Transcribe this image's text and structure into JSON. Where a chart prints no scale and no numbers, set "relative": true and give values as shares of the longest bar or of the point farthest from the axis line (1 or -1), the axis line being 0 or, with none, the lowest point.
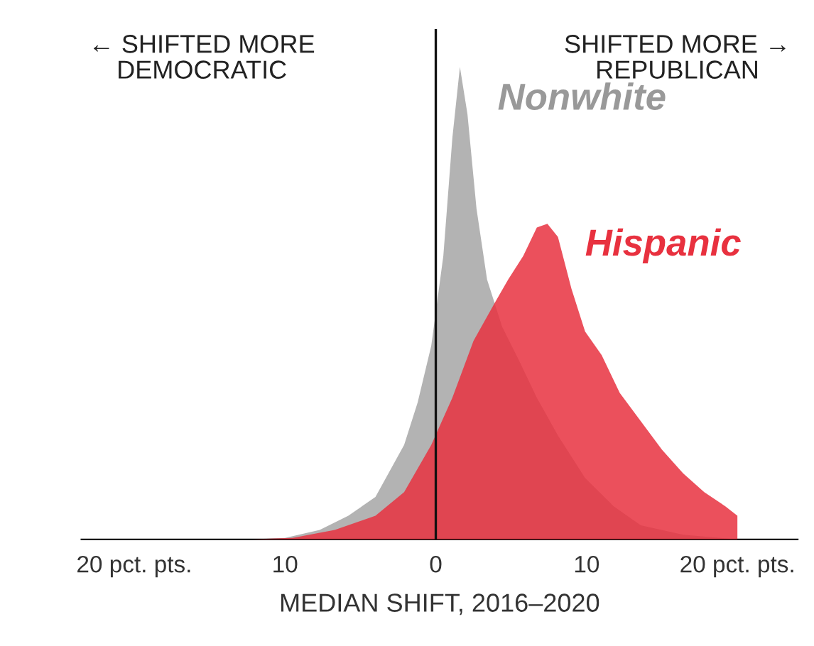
{
  "chart_data": {
    "type": "area",
    "relative": true,
    "xlabel": "MEDIAN SHIFT, 2016–2020",
    "annotations": [
      "← SHIFTED MORE\nDEMOCRATIC",
      "SHIFTED MORE →\nREPUBLICAN"
    ],
    "xlim": [
      -23.5,
      24
    ],
    "xticks": [
      {
        "value": -20,
        "label": "20 pct. pts."
      },
      {
        "value": -10,
        "label": "10"
      },
      0,
      10,
      {
        "value": 20,
        "label": "20 pct. pts."
      }
    ],
    "ref_lines": [
      {
        "axis": "x",
        "value": 0,
        "color": "#111111"
      }
    ],
    "grid": false,
    "legend": false,
    "series": [
      {
        "name": "Hispanic",
        "color": "#e8313f",
        "x": [
          -12.3,
          -9.5,
          -6.7,
          -4,
          -2.1,
          -0.3,
          1.1,
          2.5,
          3.9,
          4.8,
          5.8,
          6.7,
          7.4,
          8.1,
          9,
          9.9,
          11,
          12.2,
          13.6,
          15,
          16.4,
          17.8,
          19.2,
          20
        ],
        "values": [
          0,
          0.003,
          0.02,
          0.05,
          0.1,
          0.2,
          0.3,
          0.42,
          0.5,
          0.55,
          0.6,
          0.66,
          0.668,
          0.64,
          0.53,
          0.44,
          0.39,
          0.31,
          0.25,
          0.19,
          0.14,
          0.1,
          0.07,
          0.05
        ]
      },
      {
        "name": "Nonwhite",
        "color": "#999999",
        "x": [
          -12.3,
          -10,
          -7.7,
          -5.8,
          -4,
          -2.1,
          -1.2,
          -0.3,
          0.5,
          1.1,
          1.6,
          2.1,
          2.7,
          3.4,
          4.4,
          5.5,
          6.7,
          8.1,
          9.9,
          11.8,
          13.6,
          16.4,
          20
        ],
        "values": [
          0,
          0.003,
          0.02,
          0.05,
          0.09,
          0.2,
          0.29,
          0.41,
          0.6,
          0.85,
          1,
          0.9,
          0.7,
          0.55,
          0.45,
          0.38,
          0.3,
          0.22,
          0.13,
          0.07,
          0.03,
          0.01,
          0
        ]
      }
    ]
  }
}
